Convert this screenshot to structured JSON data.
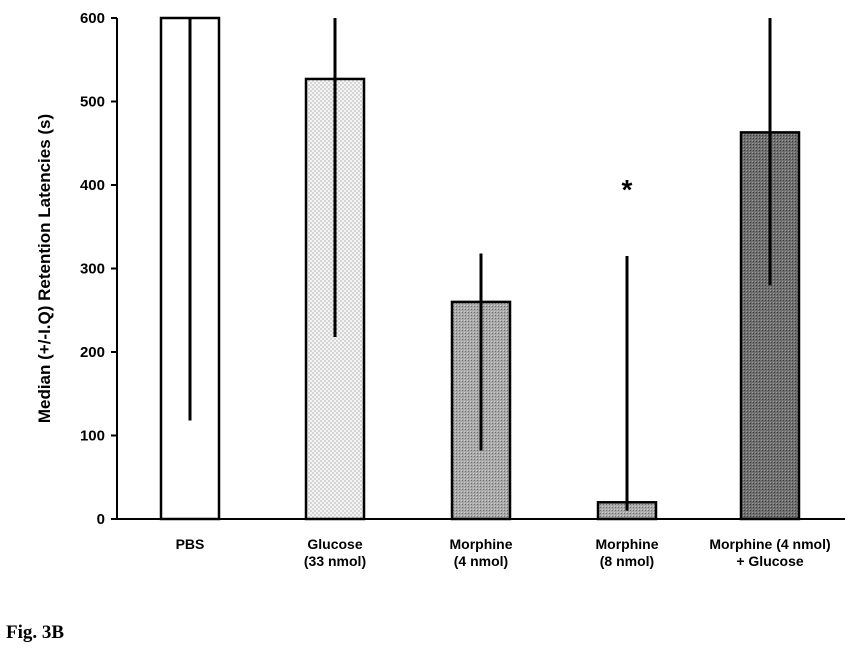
{
  "figure_label": "Fig. 3B",
  "chart_data": {
    "type": "bar",
    "ylabel": "Median (+/-I.Q) Retention Latencies (s)",
    "xlabel": "",
    "ylim": [
      0,
      600
    ],
    "yticks": [
      0,
      100,
      200,
      300,
      400,
      500,
      600
    ],
    "grid": false,
    "legend": "none",
    "categories": [
      {
        "lines": [
          "PBS"
        ]
      },
      {
        "lines": [
          "Glucose",
          "(33 nmol)"
        ]
      },
      {
        "lines": [
          "Morphine",
          "(4 nmol)"
        ]
      },
      {
        "lines": [
          "Morphine",
          "(8 nmol)"
        ]
      },
      {
        "lines": [
          "Morphine (4 nmol)",
          "+ Glucose"
        ]
      }
    ],
    "values": [
      600,
      527,
      260,
      20,
      463
    ],
    "error_low": [
      118,
      218,
      82,
      10,
      280
    ],
    "error_high": [
      600,
      600,
      318,
      315,
      600
    ],
    "patterns": [
      "white",
      "light-dots",
      "medium-gray",
      "medium-gray",
      "dark-gray"
    ],
    "annotations": [
      {
        "category_index": 3,
        "text": "*",
        "y": 400
      }
    ]
  }
}
